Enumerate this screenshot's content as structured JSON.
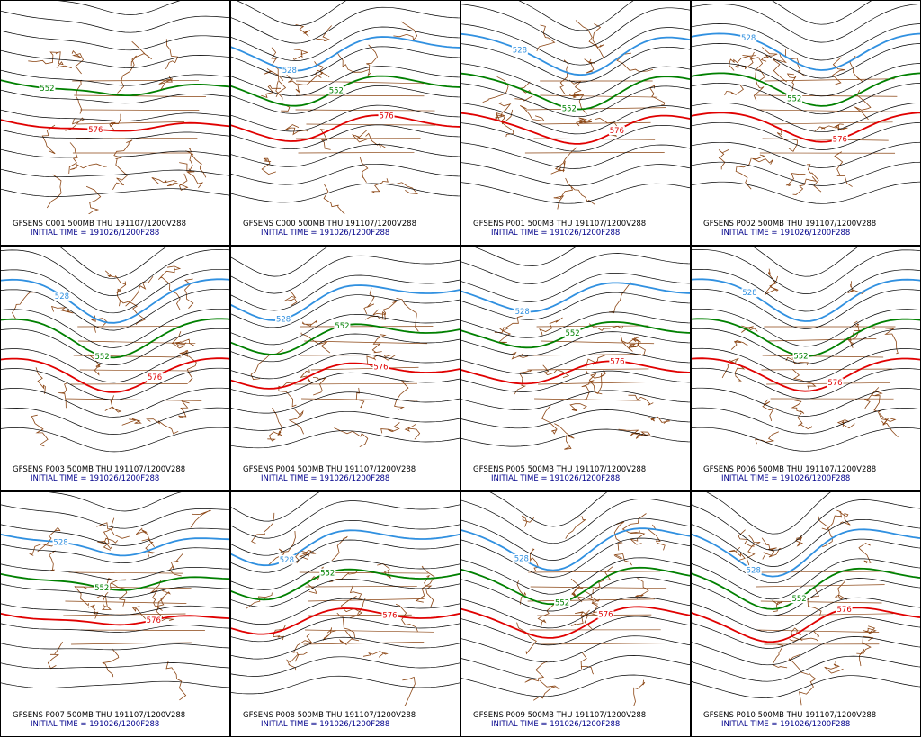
{
  "panels": [
    {
      "title": "GFSENS C001 500MB THU 191107/1200V288",
      "subtitle": "INITIAL TIME = 191026/1200F288",
      "contours": [
        {
          "label": "552",
          "color": "#008000"
        },
        {
          "label": "576",
          "color": "#e00000"
        }
      ]
    },
    {
      "title": "GFSENS C000 500MB THU 191107/1200V288",
      "subtitle": "INITIAL TIME = 191026/1200F288",
      "contours": [
        {
          "label": "528",
          "color": "#3090e0"
        },
        {
          "label": "552",
          "color": "#008000"
        },
        {
          "label": "576",
          "color": "#e00000"
        }
      ]
    },
    {
      "title": "GFSENS P001 500MB THU 191107/1200V288",
      "subtitle": "INITIAL TIME = 191026/1200F288",
      "contours": [
        {
          "label": "528",
          "color": "#3090e0"
        },
        {
          "label": "552",
          "color": "#008000"
        },
        {
          "label": "576",
          "color": "#e00000"
        }
      ]
    },
    {
      "title": "GFSENS P002 500MB THU 191107/1200V288",
      "subtitle": "INITIAL TIME = 191026/1200F288",
      "contours": [
        {
          "label": "528",
          "color": "#3090e0"
        },
        {
          "label": "552",
          "color": "#008000"
        },
        {
          "label": "576",
          "color": "#e00000"
        }
      ]
    },
    {
      "title": "GFSENS P003 500MB THU 191107/1200V288",
      "subtitle": "INITIAL TIME = 191026/1200F288",
      "contours": [
        {
          "label": "528",
          "color": "#3090e0"
        },
        {
          "label": "552",
          "color": "#008000"
        },
        {
          "label": "576",
          "color": "#e00000"
        }
      ]
    },
    {
      "title": "GFSENS P004 500MB THU 191107/1200V288",
      "subtitle": "INITIAL TIME = 191026/1200F288",
      "contours": [
        {
          "label": "528",
          "color": "#3090e0"
        },
        {
          "label": "552",
          "color": "#008000"
        },
        {
          "label": "576",
          "color": "#e00000"
        }
      ]
    },
    {
      "title": "GFSENS P005 500MB THU 191107/1200V288",
      "subtitle": "INITIAL TIME = 191026/1200F288",
      "contours": [
        {
          "label": "528",
          "color": "#3090e0"
        },
        {
          "label": "552",
          "color": "#008000"
        },
        {
          "label": "576",
          "color": "#e00000"
        }
      ]
    },
    {
      "title": "GFSENS P006 500MB THU 191107/1200V288",
      "subtitle": "INITIAL TIME = 191026/1200F288",
      "contours": [
        {
          "label": "528",
          "color": "#3090e0"
        },
        {
          "label": "552",
          "color": "#008000"
        },
        {
          "label": "576",
          "color": "#e00000"
        }
      ]
    },
    {
      "title": "GFSENS P007 500MB THU 191107/1200V288",
      "subtitle": "INITIAL TIME = 191026/1200F288",
      "contours": [
        {
          "label": "528",
          "color": "#3090e0"
        },
        {
          "label": "552",
          "color": "#008000"
        },
        {
          "label": "576",
          "color": "#e00000"
        }
      ]
    },
    {
      "title": "GFSENS P008 500MB THU 191107/1200V288",
      "subtitle": "INITIAL TIME = 191026/1200F288",
      "contours": [
        {
          "label": "528",
          "color": "#3090e0"
        },
        {
          "label": "552",
          "color": "#008000"
        },
        {
          "label": "576",
          "color": "#e00000"
        }
      ]
    },
    {
      "title": "GFSENS P009 500MB THU 191107/1200V288",
      "subtitle": "INITIAL TIME = 191026/1200F288",
      "contours": [
        {
          "label": "528",
          "color": "#3090e0"
        },
        {
          "label": "552",
          "color": "#008000"
        },
        {
          "label": "576",
          "color": "#e00000"
        }
      ]
    },
    {
      "title": "GFSENS P010 500MB THU 191107/1200V288",
      "subtitle": "INITIAL TIME = 191026/1200F288",
      "contours": [
        {
          "label": "528",
          "color": "#3090e0"
        },
        {
          "label": "552",
          "color": "#008000"
        },
        {
          "label": "576",
          "color": "#e00000"
        }
      ]
    }
  ]
}
